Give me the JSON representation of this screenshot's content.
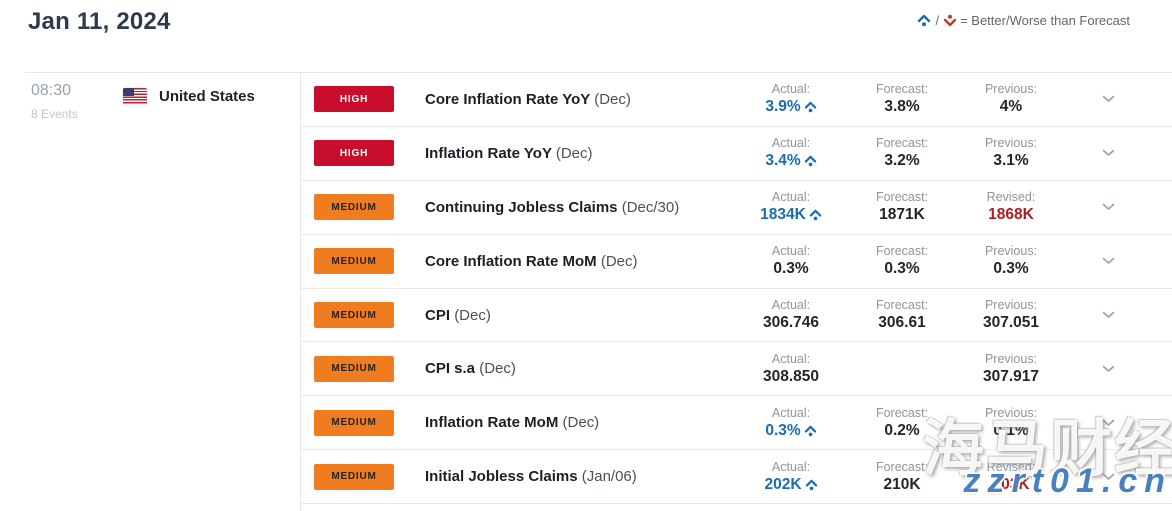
{
  "header": {
    "date": "Jan 11, 2024",
    "legend": {
      "separator": "/",
      "text": "= Better/Worse than Forecast"
    }
  },
  "session": {
    "time": "08:30",
    "events_count": "8 Events",
    "country": "United States"
  },
  "colors": {
    "high_badge": "#c80d2d",
    "medium_badge": "#ef7d1f",
    "better_blue": "#1a6cb5",
    "worse_red": "#c0392b",
    "revised_red": "#b01b21"
  },
  "watermark": {
    "line1": "海马财经",
    "line2": "zzrt01.cn"
  },
  "events": [
    {
      "impact": "HIGH",
      "level": "high",
      "title": "Core Inflation Rate YoY",
      "period": "(Dec)",
      "actual": {
        "label": "Actual:",
        "value": "3.9%",
        "better": true
      },
      "forecast": {
        "label": "Forecast:",
        "value": "3.8%"
      },
      "third": {
        "label": "Previous:",
        "value": "4%",
        "revised": false
      }
    },
    {
      "impact": "HIGH",
      "level": "high",
      "title": "Inflation Rate YoY",
      "period": "(Dec)",
      "actual": {
        "label": "Actual:",
        "value": "3.4%",
        "better": true
      },
      "forecast": {
        "label": "Forecast:",
        "value": "3.2%"
      },
      "third": {
        "label": "Previous:",
        "value": "3.1%",
        "revised": false
      }
    },
    {
      "impact": "MEDIUM",
      "level": "medium",
      "title": "Continuing Jobless Claims",
      "period": "(Dec/30)",
      "actual": {
        "label": "Actual:",
        "value": "1834K",
        "better": true
      },
      "forecast": {
        "label": "Forecast:",
        "value": "1871K"
      },
      "third": {
        "label": "Revised:",
        "value": "1868K",
        "revised": true
      }
    },
    {
      "impact": "MEDIUM",
      "level": "medium",
      "title": "Core Inflation Rate MoM",
      "period": "(Dec)",
      "actual": {
        "label": "Actual:",
        "value": "0.3%",
        "better": false
      },
      "forecast": {
        "label": "Forecast:",
        "value": "0.3%"
      },
      "third": {
        "label": "Previous:",
        "value": "0.3%",
        "revised": false
      }
    },
    {
      "impact": "MEDIUM",
      "level": "medium",
      "title": "CPI",
      "period": "(Dec)",
      "actual": {
        "label": "Actual:",
        "value": "306.746",
        "better": false
      },
      "forecast": {
        "label": "Forecast:",
        "value": "306.61"
      },
      "third": {
        "label": "Previous:",
        "value": "307.051",
        "revised": false
      }
    },
    {
      "impact": "MEDIUM",
      "level": "medium",
      "title": "CPI s.a",
      "period": "(Dec)",
      "actual": {
        "label": "Actual:",
        "value": "308.850",
        "better": false
      },
      "forecast": null,
      "third": {
        "label": "Previous:",
        "value": "307.917",
        "revised": false
      }
    },
    {
      "impact": "MEDIUM",
      "level": "medium",
      "title": "Inflation Rate MoM",
      "period": "(Dec)",
      "actual": {
        "label": "Actual:",
        "value": "0.3%",
        "better": true
      },
      "forecast": {
        "label": "Forecast:",
        "value": "0.2%"
      },
      "third": {
        "label": "Previous:",
        "value": "0.1%",
        "revised": false
      }
    },
    {
      "impact": "MEDIUM",
      "level": "medium",
      "title": "Initial Jobless Claims",
      "period": "(Jan/06)",
      "actual": {
        "label": "Actual:",
        "value": "202K",
        "better": true
      },
      "forecast": {
        "label": "Forecast:",
        "value": "210K"
      },
      "third": {
        "label": "Revised:",
        "value": "203K",
        "revised": true
      }
    }
  ]
}
